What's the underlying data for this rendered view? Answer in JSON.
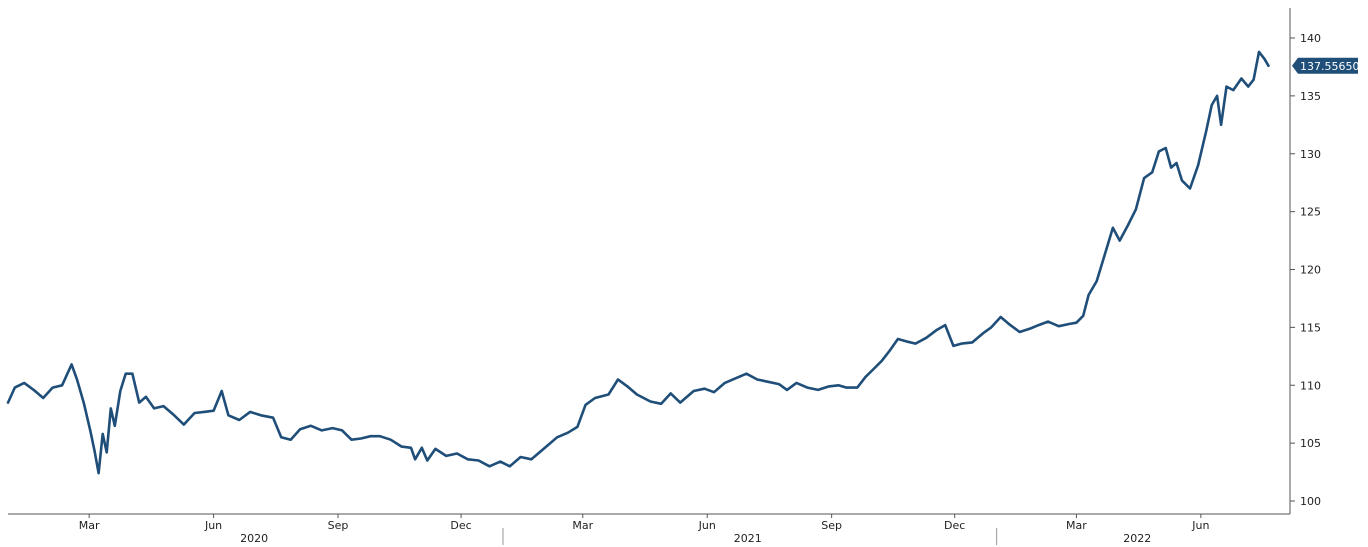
{
  "chart_data": {
    "type": "line",
    "title": "",
    "xlabel": "",
    "ylabel": "",
    "ylim": [
      100,
      140
    ],
    "xlim": [
      "2020-01-01",
      "2022-07-31"
    ],
    "grid": false,
    "y_axis_position": "right",
    "y_ticks": [
      100,
      105,
      110,
      115,
      120,
      125,
      130,
      135,
      140
    ],
    "x_month_ticks": [
      {
        "label": "Mar",
        "date": "2020-03-01"
      },
      {
        "label": "Jun",
        "date": "2020-06-01"
      },
      {
        "label": "Sep",
        "date": "2020-09-01"
      },
      {
        "label": "Dec",
        "date": "2020-12-01"
      },
      {
        "label": "Mar",
        "date": "2021-03-01"
      },
      {
        "label": "Jun",
        "date": "2021-06-01"
      },
      {
        "label": "Sep",
        "date": "2021-09-01"
      },
      {
        "label": "Dec",
        "date": "2021-12-01"
      },
      {
        "label": "Mar",
        "date": "2022-03-01"
      },
      {
        "label": "Jun",
        "date": "2022-06-01"
      }
    ],
    "x_year_labels": [
      {
        "label": "2020",
        "date": "2020-07-01"
      },
      {
        "label": "2021",
        "date": "2021-07-01"
      },
      {
        "label": "2022",
        "date": "2022-04-15"
      }
    ],
    "year_separators": [
      "2021-01-01",
      "2022-01-01"
    ],
    "last_value_label": "137.55650",
    "line_color": "#1f4e79",
    "series": [
      {
        "points": [
          [
            "2020-01-01",
            108.5
          ],
          [
            "2020-01-06",
            109.8
          ],
          [
            "2020-01-13",
            110.2
          ],
          [
            "2020-01-20",
            109.6
          ],
          [
            "2020-01-27",
            108.9
          ],
          [
            "2020-02-03",
            109.8
          ],
          [
            "2020-02-10",
            110.0
          ],
          [
            "2020-02-17",
            111.8
          ],
          [
            "2020-02-21",
            110.5
          ],
          [
            "2020-02-26",
            108.5
          ],
          [
            "2020-03-02",
            106.0
          ],
          [
            "2020-03-05",
            104.3
          ],
          [
            "2020-03-08",
            102.4
          ],
          [
            "2020-03-11",
            105.8
          ],
          [
            "2020-03-14",
            104.2
          ],
          [
            "2020-03-17",
            108.0
          ],
          [
            "2020-03-20",
            106.5
          ],
          [
            "2020-03-24",
            109.5
          ],
          [
            "2020-03-28",
            111.0
          ],
          [
            "2020-04-02",
            111.0
          ],
          [
            "2020-04-07",
            108.5
          ],
          [
            "2020-04-12",
            109.0
          ],
          [
            "2020-04-18",
            108.0
          ],
          [
            "2020-04-25",
            108.2
          ],
          [
            "2020-05-02",
            107.5
          ],
          [
            "2020-05-10",
            106.6
          ],
          [
            "2020-05-18",
            107.6
          ],
          [
            "2020-05-25",
            107.7
          ],
          [
            "2020-06-01",
            107.8
          ],
          [
            "2020-06-07",
            109.5
          ],
          [
            "2020-06-12",
            107.4
          ],
          [
            "2020-06-20",
            107.0
          ],
          [
            "2020-06-28",
            107.7
          ],
          [
            "2020-07-06",
            107.4
          ],
          [
            "2020-07-15",
            107.2
          ],
          [
            "2020-07-21",
            105.5
          ],
          [
            "2020-07-28",
            105.3
          ],
          [
            "2020-08-04",
            106.2
          ],
          [
            "2020-08-12",
            106.5
          ],
          [
            "2020-08-20",
            106.1
          ],
          [
            "2020-08-28",
            106.3
          ],
          [
            "2020-09-04",
            106.1
          ],
          [
            "2020-09-11",
            105.3
          ],
          [
            "2020-09-18",
            105.4
          ],
          [
            "2020-09-25",
            105.6
          ],
          [
            "2020-10-02",
            105.6
          ],
          [
            "2020-10-10",
            105.3
          ],
          [
            "2020-10-18",
            104.7
          ],
          [
            "2020-10-25",
            104.6
          ],
          [
            "2020-10-28",
            103.6
          ],
          [
            "2020-11-02",
            104.6
          ],
          [
            "2020-11-06",
            103.5
          ],
          [
            "2020-11-12",
            104.5
          ],
          [
            "2020-11-20",
            103.9
          ],
          [
            "2020-11-28",
            104.1
          ],
          [
            "2020-12-06",
            103.6
          ],
          [
            "2020-12-14",
            103.5
          ],
          [
            "2020-12-22",
            103.0
          ],
          [
            "2020-12-30",
            103.4
          ],
          [
            "2021-01-06",
            103.0
          ],
          [
            "2021-01-14",
            103.8
          ],
          [
            "2021-01-22",
            103.6
          ],
          [
            "2021-02-01",
            104.6
          ],
          [
            "2021-02-10",
            105.5
          ],
          [
            "2021-02-18",
            105.9
          ],
          [
            "2021-02-25",
            106.4
          ],
          [
            "2021-03-03",
            108.3
          ],
          [
            "2021-03-10",
            108.9
          ],
          [
            "2021-03-20",
            109.2
          ],
          [
            "2021-03-27",
            110.5
          ],
          [
            "2021-04-03",
            109.9
          ],
          [
            "2021-04-10",
            109.2
          ],
          [
            "2021-04-20",
            108.6
          ],
          [
            "2021-04-28",
            108.4
          ],
          [
            "2021-05-05",
            109.3
          ],
          [
            "2021-05-12",
            108.5
          ],
          [
            "2021-05-22",
            109.5
          ],
          [
            "2021-05-30",
            109.7
          ],
          [
            "2021-06-06",
            109.4
          ],
          [
            "2021-06-14",
            110.2
          ],
          [
            "2021-06-22",
            110.6
          ],
          [
            "2021-06-30",
            111.0
          ],
          [
            "2021-07-08",
            110.5
          ],
          [
            "2021-07-16",
            110.3
          ],
          [
            "2021-07-24",
            110.1
          ],
          [
            "2021-07-30",
            109.6
          ],
          [
            "2021-08-06",
            110.2
          ],
          [
            "2021-08-14",
            109.8
          ],
          [
            "2021-08-22",
            109.6
          ],
          [
            "2021-08-30",
            109.9
          ],
          [
            "2021-09-06",
            110.0
          ],
          [
            "2021-09-12",
            109.8
          ],
          [
            "2021-09-20",
            109.8
          ],
          [
            "2021-09-26",
            110.7
          ],
          [
            "2021-10-02",
            111.4
          ],
          [
            "2021-10-08",
            112.1
          ],
          [
            "2021-10-14",
            113.0
          ],
          [
            "2021-10-20",
            114.0
          ],
          [
            "2021-10-26",
            113.8
          ],
          [
            "2021-11-02",
            113.6
          ],
          [
            "2021-11-10",
            114.1
          ],
          [
            "2021-11-18",
            114.8
          ],
          [
            "2021-11-24",
            115.2
          ],
          [
            "2021-11-30",
            113.4
          ],
          [
            "2021-12-06",
            113.6
          ],
          [
            "2021-12-14",
            113.7
          ],
          [
            "2021-12-22",
            114.5
          ],
          [
            "2021-12-28",
            115.0
          ],
          [
            "2022-01-04",
            115.9
          ],
          [
            "2022-01-10",
            115.3
          ],
          [
            "2022-01-18",
            114.6
          ],
          [
            "2022-01-26",
            114.9
          ],
          [
            "2022-02-01",
            115.2
          ],
          [
            "2022-02-08",
            115.5
          ],
          [
            "2022-02-16",
            115.1
          ],
          [
            "2022-02-24",
            115.3
          ],
          [
            "2022-03-01",
            115.4
          ],
          [
            "2022-03-06",
            116.0
          ],
          [
            "2022-03-10",
            117.8
          ],
          [
            "2022-03-16",
            119.0
          ],
          [
            "2022-03-22",
            121.3
          ],
          [
            "2022-03-28",
            123.6
          ],
          [
            "2022-04-02",
            122.5
          ],
          [
            "2022-04-08",
            123.8
          ],
          [
            "2022-04-14",
            125.2
          ],
          [
            "2022-04-20",
            127.9
          ],
          [
            "2022-04-26",
            128.4
          ],
          [
            "2022-05-01",
            130.2
          ],
          [
            "2022-05-06",
            130.5
          ],
          [
            "2022-05-10",
            128.8
          ],
          [
            "2022-05-14",
            129.2
          ],
          [
            "2022-05-18",
            127.7
          ],
          [
            "2022-05-24",
            127.0
          ],
          [
            "2022-05-30",
            129.0
          ],
          [
            "2022-06-05",
            132.0
          ],
          [
            "2022-06-09",
            134.2
          ],
          [
            "2022-06-13",
            135.0
          ],
          [
            "2022-06-16",
            132.5
          ],
          [
            "2022-06-20",
            135.8
          ],
          [
            "2022-06-25",
            135.5
          ],
          [
            "2022-07-01",
            136.5
          ],
          [
            "2022-07-06",
            135.8
          ],
          [
            "2022-07-10",
            136.4
          ],
          [
            "2022-07-14",
            138.8
          ],
          [
            "2022-07-18",
            138.2
          ],
          [
            "2022-07-21",
            137.6
          ]
        ]
      }
    ]
  }
}
